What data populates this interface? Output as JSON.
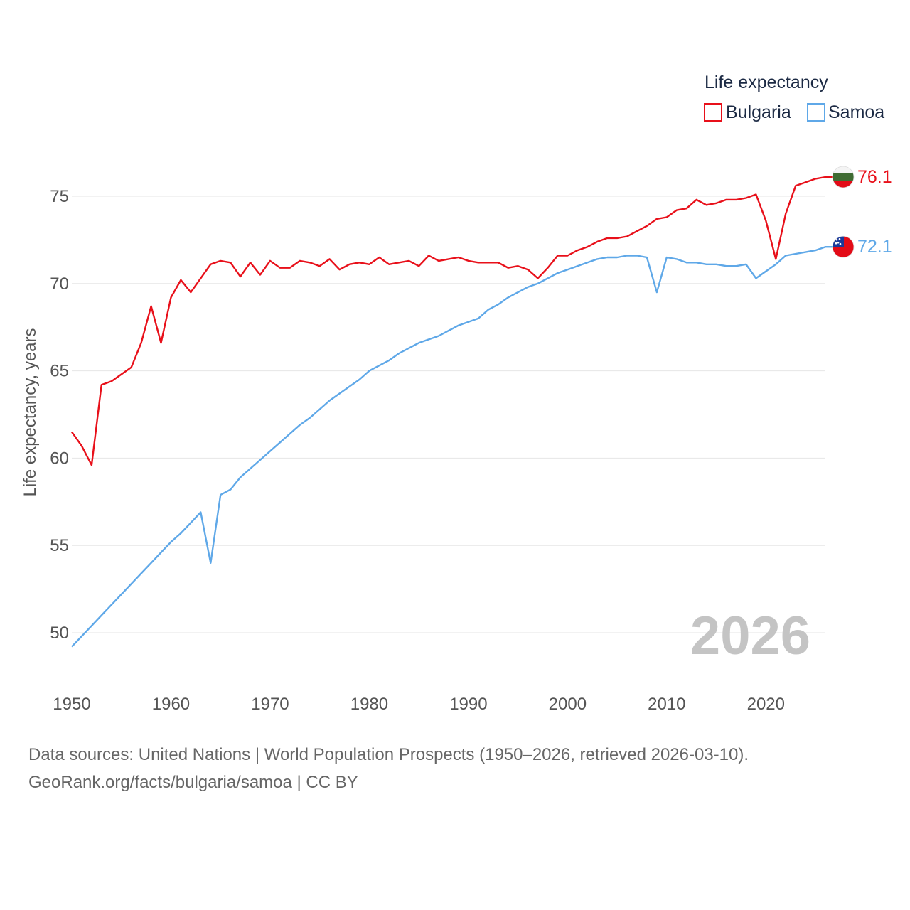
{
  "legend": {
    "title": "Life expectancy"
  },
  "chart_data": {
    "type": "line",
    "title": "Life expectancy",
    "xlabel": "",
    "ylabel": "Life expectancy, years",
    "xlim": [
      1950,
      2026
    ],
    "ylim": [
      47.8,
      77.5
    ],
    "x_ticks": [
      1950,
      1960,
      1970,
      1980,
      1990,
      2000,
      2010,
      2020
    ],
    "y_ticks": [
      50,
      55,
      60,
      65,
      70,
      75
    ],
    "grid": true,
    "legend_position": "top-right",
    "current_year_label": "2026",
    "x": [
      1950,
      1951,
      1952,
      1953,
      1954,
      1955,
      1956,
      1957,
      1958,
      1959,
      1960,
      1961,
      1962,
      1963,
      1964,
      1965,
      1966,
      1967,
      1968,
      1969,
      1970,
      1971,
      1972,
      1973,
      1974,
      1975,
      1976,
      1977,
      1978,
      1979,
      1980,
      1981,
      1982,
      1983,
      1984,
      1985,
      1986,
      1987,
      1988,
      1989,
      1990,
      1991,
      1992,
      1993,
      1994,
      1995,
      1996,
      1997,
      1998,
      1999,
      2000,
      2001,
      2002,
      2003,
      2004,
      2005,
      2006,
      2007,
      2008,
      2009,
      2010,
      2011,
      2012,
      2013,
      2014,
      2015,
      2016,
      2017,
      2018,
      2019,
      2020,
      2021,
      2022,
      2023,
      2024,
      2025,
      2026
    ],
    "series": [
      {
        "name": "Bulgaria",
        "color": "#e8101a",
        "flag": "bulgaria-flag",
        "end_label": "76.1",
        "values": [
          61.5,
          60.7,
          59.6,
          64.2,
          64.4,
          64.8,
          65.2,
          66.6,
          68.7,
          66.6,
          69.2,
          70.2,
          69.5,
          70.3,
          71.1,
          71.3,
          71.2,
          70.4,
          71.2,
          70.5,
          71.3,
          70.9,
          70.9,
          71.3,
          71.2,
          71.0,
          71.4,
          70.8,
          71.1,
          71.2,
          71.1,
          71.5,
          71.1,
          71.2,
          71.3,
          71.0,
          71.6,
          71.3,
          71.4,
          71.5,
          71.3,
          71.2,
          71.2,
          71.2,
          70.9,
          71.0,
          70.8,
          70.3,
          70.9,
          71.6,
          71.6,
          71.9,
          72.1,
          72.4,
          72.6,
          72.6,
          72.7,
          73.0,
          73.3,
          73.7,
          73.8,
          74.2,
          74.3,
          74.8,
          74.5,
          74.6,
          74.8,
          74.8,
          74.9,
          75.1,
          73.6,
          71.4,
          74.0,
          75.6,
          75.8,
          76.0,
          76.1
        ]
      },
      {
        "name": "Samoa",
        "color": "#5fa8e8",
        "flag": "samoa-flag",
        "end_label": "72.1",
        "values": [
          49.2,
          49.8,
          50.4,
          51.0,
          51.6,
          52.2,
          52.8,
          53.4,
          54.0,
          54.6,
          55.2,
          55.7,
          56.3,
          56.9,
          54.0,
          57.9,
          58.2,
          58.9,
          59.4,
          59.9,
          60.4,
          60.9,
          61.4,
          61.9,
          62.3,
          62.8,
          63.3,
          63.7,
          64.1,
          64.5,
          65.0,
          65.3,
          65.6,
          66.0,
          66.3,
          66.6,
          66.8,
          67.0,
          67.3,
          67.6,
          67.8,
          68.0,
          68.5,
          68.8,
          69.2,
          69.5,
          69.8,
          70.0,
          70.3,
          70.6,
          70.8,
          71.0,
          71.2,
          71.4,
          71.5,
          71.5,
          71.6,
          71.6,
          71.5,
          69.5,
          71.5,
          71.4,
          71.2,
          71.2,
          71.1,
          71.1,
          71.0,
          71.0,
          71.1,
          70.3,
          70.7,
          71.1,
          71.6,
          71.7,
          71.8,
          71.9,
          72.1
        ]
      }
    ]
  },
  "footer": {
    "source_line": "Data sources: United Nations | World Population Prospects (1950–2026, retrieved 2026-03-10).",
    "credit_line": "GeoRank.org/facts/bulgaria/samoa | CC BY"
  }
}
